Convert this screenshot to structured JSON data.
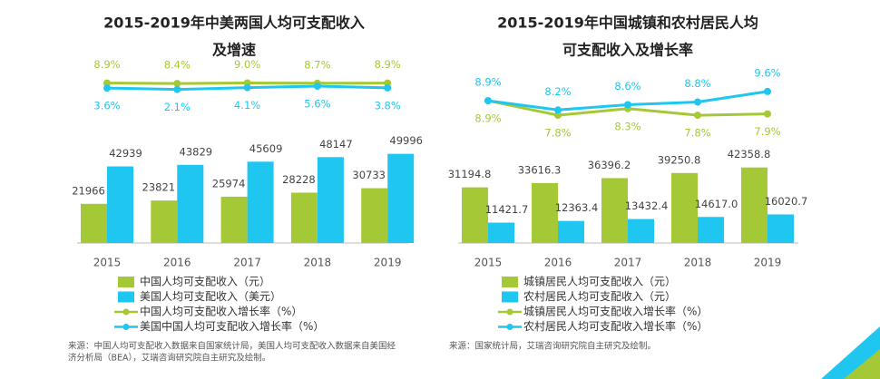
{
  "chart_data": [
    {
      "type": "bar_line",
      "title": [
        "2015-2019年中美两国人均可支配收入",
        "及增速"
      ],
      "categories": [
        "2015",
        "2016",
        "2017",
        "2018",
        "2019"
      ],
      "ylim": [
        0,
        60000
      ],
      "y2lim": [
        -95,
        20
      ],
      "series": [
        {
          "name": "中国人均可支配收入（元）",
          "type": "bar",
          "color": "#a5c936",
          "values": [
            21966,
            23821,
            25974,
            28228,
            30733
          ]
        },
        {
          "name": "美国人均可支配收入（美元）",
          "type": "bar",
          "color": "#1fc6f0",
          "values": [
            42939,
            43829,
            45609,
            48147,
            49996
          ]
        },
        {
          "name": "中国人均可支配收入增长率（%）",
          "type": "line",
          "axis": "y2",
          "color": "#a5c936",
          "values": [
            8.9,
            8.4,
            9.0,
            8.7,
            8.9
          ],
          "value_labels": [
            "8.9%",
            "8.4%",
            "9.0%",
            "8.7%",
            "8.9%"
          ]
        },
        {
          "name": "美国中国人均可支配收入增长率（%）",
          "type": "line",
          "axis": "y2",
          "color": "#1fc6f0",
          "values": [
            3.6,
            2.1,
            4.1,
            5.6,
            3.8
          ],
          "value_labels": [
            "3.6%",
            "2.1%",
            "4.1%",
            "5.6%",
            "3.8%"
          ]
        }
      ],
      "source": [
        "来源：中国人均可支配收入数据来自国家统计局，美国人均可支配收入数据来自美国经",
        "济分析局（BEA），艾瑞咨询研究院自主研究及绘制。"
      ]
    },
    {
      "type": "bar_line",
      "title": [
        "2015-2019年中国城镇和农村居民人均",
        "可支配收入及增长率"
      ],
      "categories": [
        "2015",
        "2016",
        "2017",
        "2018",
        "2019"
      ],
      "ylim": [
        0,
        60000
      ],
      "y2lim": [
        6.5,
        12
      ],
      "series": [
        {
          "name": "城镇居民人均可支配收入（元）",
          "type": "bar",
          "color": "#a5c936",
          "values": [
            31194.8,
            33616.3,
            36396.2,
            39250.8,
            42358.8
          ]
        },
        {
          "name": "农村居民人均可支配收入（元）",
          "type": "bar",
          "color": "#1fc6f0",
          "values": [
            11421.7,
            12363.4,
            13432.4,
            14617.0,
            16020.7
          ],
          "value_labels": [
            "11421.7",
            "12363.4",
            "13432.4",
            "14617.0",
            "16020.7"
          ]
        },
        {
          "name": "城镇居民人均可支配收入增长率（%）",
          "type": "line",
          "axis": "y2",
          "color": "#a5c936",
          "values": [
            8.9,
            7.8,
            8.3,
            7.8,
            7.9
          ],
          "value_labels": [
            "8.9%",
            "7.8%",
            "8.3%",
            "7.8%",
            "7.9%"
          ]
        },
        {
          "name": "农村居民人均可支配收入增长率（%）",
          "type": "line",
          "axis": "y2",
          "color": "#1fc6f0",
          "values": [
            8.9,
            8.2,
            8.6,
            8.8,
            9.6
          ],
          "value_labels": [
            "8.9%",
            "8.2%",
            "8.6%",
            "8.8%",
            "9.6%"
          ]
        }
      ],
      "source": [
        "来源：国家统计局，艾瑞咨询研究院自主研究及绘制。"
      ]
    }
  ]
}
